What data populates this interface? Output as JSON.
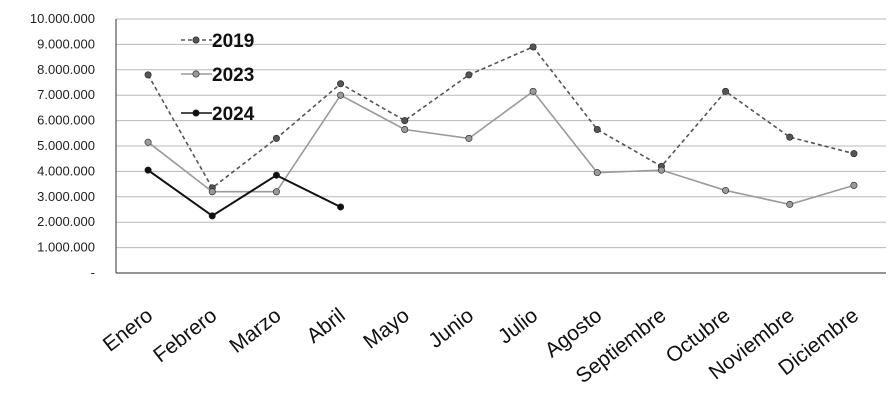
{
  "chart_data": {
    "type": "line",
    "title": "",
    "xlabel": "",
    "ylabel": "",
    "categories": [
      "Enero",
      "Febrero",
      "Marzo",
      "Abril",
      "Mayo",
      "Junio",
      "Julio",
      "Agosto",
      "Septiembre",
      "Octubre",
      "Noviembre",
      "Diciembre"
    ],
    "ylim": [
      0,
      10000000
    ],
    "yticks": [
      {
        "value": 0,
        "label": "-"
      },
      {
        "value": 1000000,
        "label": "1.000.000"
      },
      {
        "value": 2000000,
        "label": "2.000.000"
      },
      {
        "value": 3000000,
        "label": "3.000.000"
      },
      {
        "value": 4000000,
        "label": "4.000.000"
      },
      {
        "value": 5000000,
        "label": "5.000.000"
      },
      {
        "value": 6000000,
        "label": "6.000.000"
      },
      {
        "value": 7000000,
        "label": "7.000.000"
      },
      {
        "value": 8000000,
        "label": "8.000.000"
      },
      {
        "value": 9000000,
        "label": "9.000.000"
      },
      {
        "value": 10000000,
        "label": "10.000.000"
      }
    ],
    "grid": true,
    "legend_position": "top-left",
    "series": [
      {
        "name": "2019",
        "color": "#555555",
        "dash": "4,3",
        "values": [
          7800000,
          3350000,
          5300000,
          7450000,
          6000000,
          7800000,
          8900000,
          5650000,
          4200000,
          7150000,
          5350000,
          4700000
        ]
      },
      {
        "name": "2023",
        "color": "#9a9a9a",
        "dash": "",
        "values": [
          5150000,
          3200000,
          3200000,
          7000000,
          5650000,
          5300000,
          7150000,
          3950000,
          4050000,
          3250000,
          2700000,
          3450000
        ]
      },
      {
        "name": "2024",
        "color": "#111111",
        "dash": "",
        "values": [
          4050000,
          2250000,
          3850000,
          2600000,
          null,
          null,
          null,
          null,
          null,
          null,
          null,
          null
        ]
      }
    ]
  }
}
